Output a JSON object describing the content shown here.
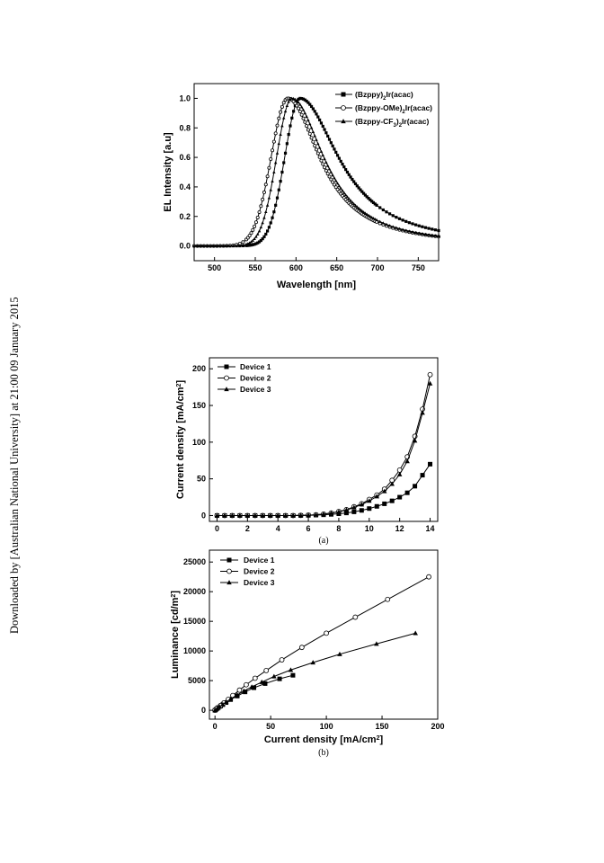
{
  "side_note": "Downloaded by [Australian National University] at 21:00 09 January 2015",
  "chart_data": [
    {
      "type": "line",
      "xlabel": "Wavelength [nm]",
      "ylabel": "EL Intensity [a.u]",
      "xlim": [
        475,
        775
      ],
      "ylim": [
        -0.1,
        1.1
      ],
      "x_ticks": [
        500,
        550,
        600,
        650,
        700,
        750
      ],
      "y_ticks": [
        0.0,
        0.2,
        0.4,
        0.6,
        0.8,
        1.0
      ],
      "legend_position": "top-right",
      "series": [
        {
          "name": "(Bzppy)2Ir(acac)",
          "marker": "square-filled",
          "peak": 605,
          "left_width": 22,
          "right_width": 58
        },
        {
          "name": "(Bzppy-OMe)2Ir(acac)",
          "marker": "circle-open",
          "peak": 590,
          "left_width": 24,
          "right_width": 48
        },
        {
          "name": "(Bzppy-CF3)2Ir(acac)",
          "marker": "triangle-filled",
          "peak": 595,
          "left_width": 22,
          "right_width": 48
        }
      ],
      "legend_html": [
        "(Bzppy)<tspan baseline-shift='sub' font-size='6'>2</tspan>Ir(acac)",
        "(Bzppy-OMe)<tspan baseline-shift='sub' font-size='6'>2</tspan>Ir(acac)",
        "(Bzppy-CF<tspan baseline-shift='sub' font-size='6'>3</tspan>)<tspan baseline-shift='sub' font-size='6'>2</tspan>Ir(acac)"
      ]
    },
    {
      "type": "line",
      "caption": "(a)",
      "xlabel": "",
      "ylabel": "Current density [mA/cm2]",
      "xlim": [
        -0.5,
        14.5
      ],
      "ylim": [
        -8,
        215
      ],
      "x_ticks": [
        0,
        2,
        4,
        6,
        8,
        10,
        12,
        14
      ],
      "y_ticks": [
        0,
        50,
        100,
        150,
        200
      ],
      "legend_position": "top-left",
      "series": [
        {
          "name": "Device 1",
          "marker": "square-filled",
          "x": [
            0,
            0.5,
            1,
            1.5,
            2,
            2.5,
            3,
            3.5,
            4,
            4.5,
            5,
            5.5,
            6,
            6.5,
            7,
            7.5,
            8,
            8.5,
            9,
            9.5,
            10,
            10.5,
            11,
            11.5,
            12,
            12.5,
            13,
            13.5,
            14
          ],
          "y": [
            0,
            0,
            0,
            0,
            0,
            0,
            0,
            0,
            0,
            0,
            0,
            0.1,
            0.3,
            0.6,
            1,
            1.6,
            2.4,
            3.5,
            5,
            7,
            9.5,
            12.5,
            16,
            20,
            25,
            31,
            40,
            55,
            70
          ]
        },
        {
          "name": "Device 2",
          "marker": "circle-open",
          "x": [
            0,
            0.5,
            1,
            1.5,
            2,
            2.5,
            3,
            3.5,
            4,
            4.5,
            5,
            5.5,
            6,
            6.5,
            7,
            7.5,
            8,
            8.5,
            9,
            9.5,
            10,
            10.5,
            11,
            11.5,
            12,
            12.5,
            13,
            13.5,
            14
          ],
          "y": [
            0,
            0,
            0,
            0,
            0,
            0,
            0,
            0,
            0,
            0,
            0,
            0.2,
            0.5,
            1,
            2,
            3.5,
            5.5,
            8,
            12,
            16,
            22,
            28,
            36,
            48,
            62,
            80,
            108,
            145,
            192
          ]
        },
        {
          "name": "Device 3",
          "marker": "triangle-filled",
          "x": [
            0,
            0.5,
            1,
            1.5,
            2,
            2.5,
            3,
            3.5,
            4,
            4.5,
            5,
            5.5,
            6,
            6.5,
            7,
            7.5,
            8,
            8.5,
            9,
            9.5,
            10,
            10.5,
            11,
            11.5,
            12,
            12.5,
            13,
            13.5,
            14
          ],
          "y": [
            0,
            0,
            0,
            0,
            0,
            0,
            0,
            0,
            0,
            0,
            0,
            0.2,
            0.5,
            1,
            2,
            3.3,
            5,
            7.5,
            11,
            15,
            20,
            26,
            33,
            43,
            56,
            74,
            102,
            140,
            180
          ]
        }
      ]
    },
    {
      "type": "line",
      "caption": "(b)",
      "xlabel": "Current density [mA/cm2]",
      "ylabel": "Luminance [cd/m2]",
      "xlim": [
        -5,
        200
      ],
      "ylim": [
        -1500,
        27000
      ],
      "x_ticks": [
        0,
        50,
        100,
        150,
        200
      ],
      "y_ticks": [
        0,
        5000,
        10000,
        15000,
        20000,
        25000
      ],
      "legend_position": "top-left",
      "series": [
        {
          "name": "Device 1",
          "marker": "square-filled",
          "x": [
            0,
            1,
            2,
            3,
            5,
            7,
            10,
            14,
            20,
            27,
            35,
            45,
            58,
            70
          ],
          "y": [
            0,
            150,
            300,
            450,
            700,
            950,
            1300,
            1800,
            2400,
            3100,
            3800,
            4500,
            5300,
            5900
          ]
        },
        {
          "name": "Device 2",
          "marker": "circle-open",
          "x": [
            0,
            2,
            5,
            8,
            12,
            16,
            22,
            28,
            36,
            46,
            60,
            78,
            100,
            126,
            155,
            192
          ],
          "y": [
            0,
            350,
            800,
            1250,
            1850,
            2500,
            3400,
            4300,
            5400,
            6700,
            8500,
            10600,
            13000,
            15700,
            18700,
            22500
          ]
        },
        {
          "name": "Device 3",
          "marker": "triangle-filled",
          "x": [
            0,
            2,
            4,
            7,
            10,
            14,
            20,
            26,
            33,
            42,
            53,
            68,
            88,
            112,
            145,
            180
          ],
          "y": [
            0,
            300,
            600,
            1000,
            1400,
            1900,
            2600,
            3250,
            3950,
            4750,
            5700,
            6800,
            8050,
            9450,
            11200,
            13000
          ]
        }
      ]
    }
  ]
}
